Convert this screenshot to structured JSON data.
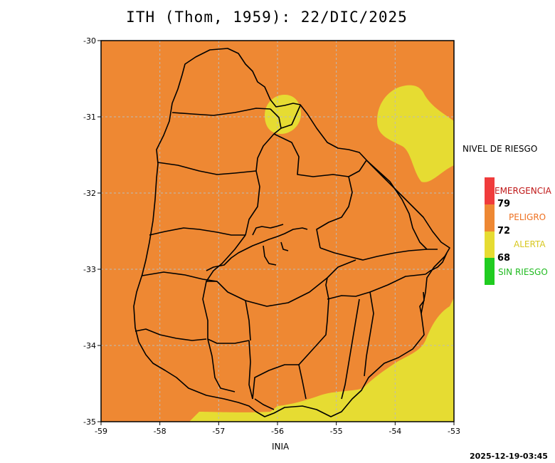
{
  "title": "ITH (Thom, 1959): 22/DIC/2025",
  "map": {
    "x_ticks": [
      "-59",
      "-58",
      "-57",
      "-56",
      "-55",
      "-54",
      "-53"
    ],
    "y_ticks": [
      "-30",
      "-31",
      "-32",
      "-33",
      "-34",
      "-35"
    ],
    "lon_range": [
      -59,
      -53
    ],
    "lat_range": [
      -35,
      -30
    ],
    "grid": true,
    "background_level": "PELIGRO",
    "colors": {
      "peligro": "#ee8833",
      "alerta": "#e6dc32",
      "border": "#000000",
      "grid": "#bbbbbb"
    }
  },
  "legend": {
    "title": "NIVEL DE RIESGO",
    "levels": [
      {
        "label": "EMERGENCIA",
        "color": "#f03c3c",
        "text_color": "#c01818"
      },
      {
        "label": "PELIGRO",
        "color": "#ee8833",
        "text_color": "#ee7020"
      },
      {
        "label": "ALERTA",
        "color": "#e6dc32",
        "text_color": "#d8c820"
      },
      {
        "label": "SIN RIESGO",
        "color": "#20cc20",
        "text_color": "#20bb20"
      }
    ],
    "thresholds": [
      "79",
      "72",
      "68"
    ]
  },
  "credit": "INIA",
  "timestamp": "2025-12-19-03:45"
}
